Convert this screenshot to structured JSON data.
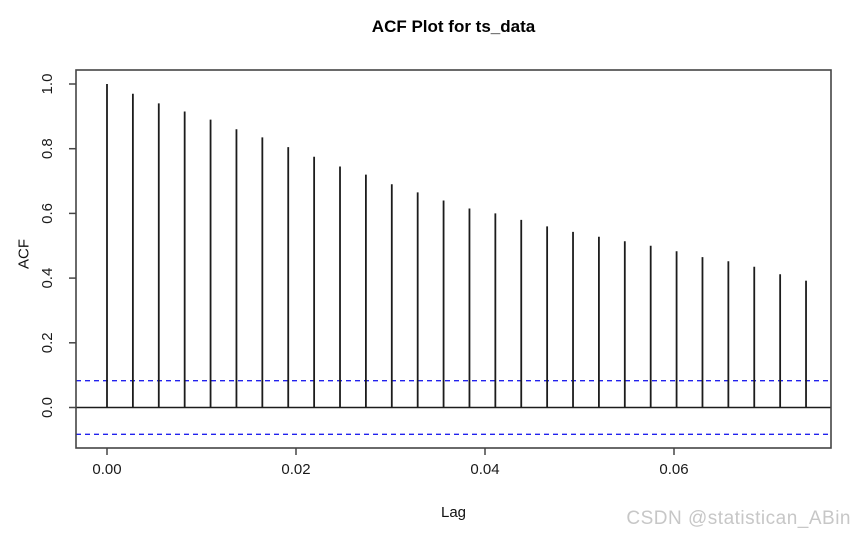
{
  "page": {
    "background_color": "#ffffff",
    "watermark": "CSDN @statistican_ABin",
    "watermark_color": "#c7c7c7"
  },
  "chart_data": {
    "type": "bar",
    "variant": "acf-stem-plot",
    "title": "ACF Plot for ts_data",
    "xlabel": "Lag",
    "ylabel": "ACF",
    "x_tick_labels": [
      "0.00",
      "0.02",
      "0.04",
      "0.06"
    ],
    "x_tick_values": [
      0.0,
      0.02,
      0.04,
      0.06
    ],
    "y_tick_labels": [
      "0.0",
      "0.2",
      "0.4",
      "0.6",
      "0.8",
      "1.0"
    ],
    "y_tick_values": [
      0.0,
      0.2,
      0.4,
      0.6,
      0.8,
      1.0
    ],
    "xlim": [
      -0.0034,
      0.0766
    ],
    "ylim": [
      -0.125,
      1.044
    ],
    "lag_step": 0.0027397,
    "grid": false,
    "legend": false,
    "confidence_bounds": [
      0.083,
      -0.083
    ],
    "series": [
      {
        "name": "ACF",
        "values": [
          1.0,
          0.97,
          0.94,
          0.915,
          0.89,
          0.86,
          0.835,
          0.805,
          0.775,
          0.745,
          0.72,
          0.69,
          0.665,
          0.64,
          0.615,
          0.6,
          0.58,
          0.56,
          0.543,
          0.528,
          0.514,
          0.5,
          0.483,
          0.465,
          0.452,
          0.435,
          0.412,
          0.392
        ]
      }
    ],
    "colors": {
      "bar": "#1c1c1c",
      "axis_box": "#454545",
      "zero_line": "#1c1c1c",
      "confidence_line": "#2222ee",
      "tick_text": "#1a1a1a"
    }
  }
}
